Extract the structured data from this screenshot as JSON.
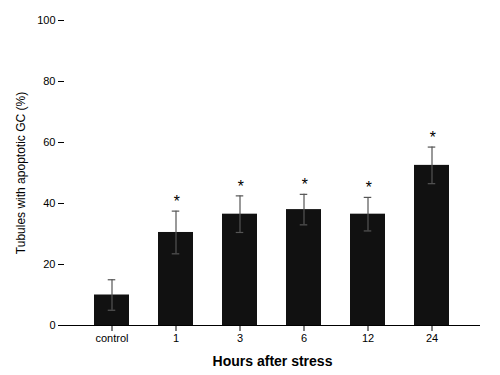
{
  "chart_data": {
    "type": "bar",
    "categories": [
      "control",
      "1",
      "3",
      "6",
      "12",
      "24"
    ],
    "values": [
      10,
      30.5,
      36.5,
      38,
      36.5,
      52.5
    ],
    "errors": [
      5,
      7,
      6,
      5,
      5.5,
      6
    ],
    "color": "#111111",
    "error_color": "#555555",
    "xlabel": "Hours after stress",
    "ylabel": "Tubules with apoptotic GC (%)",
    "ylim": [
      0,
      100
    ],
    "yticks": [
      0,
      20,
      40,
      60,
      80,
      100
    ],
    "grid": false,
    "annotations": [
      {
        "category": "1",
        "text": "*"
      },
      {
        "category": "3",
        "text": "*"
      },
      {
        "category": "6",
        "text": "*"
      },
      {
        "category": "12",
        "text": "*"
      },
      {
        "category": "24",
        "text": "*"
      }
    ]
  }
}
